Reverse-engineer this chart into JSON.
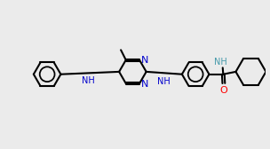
{
  "bg_color": "#ebebeb",
  "bond_color": "#000000",
  "N_color": "#0000cc",
  "O_color": "#ff0000",
  "NH_color": "#4499aa",
  "lw": 1.5,
  "dbo": 0.018,
  "xlim": [
    -2.6,
    2.6
  ],
  "ylim": [
    -1.4,
    1.4
  ]
}
